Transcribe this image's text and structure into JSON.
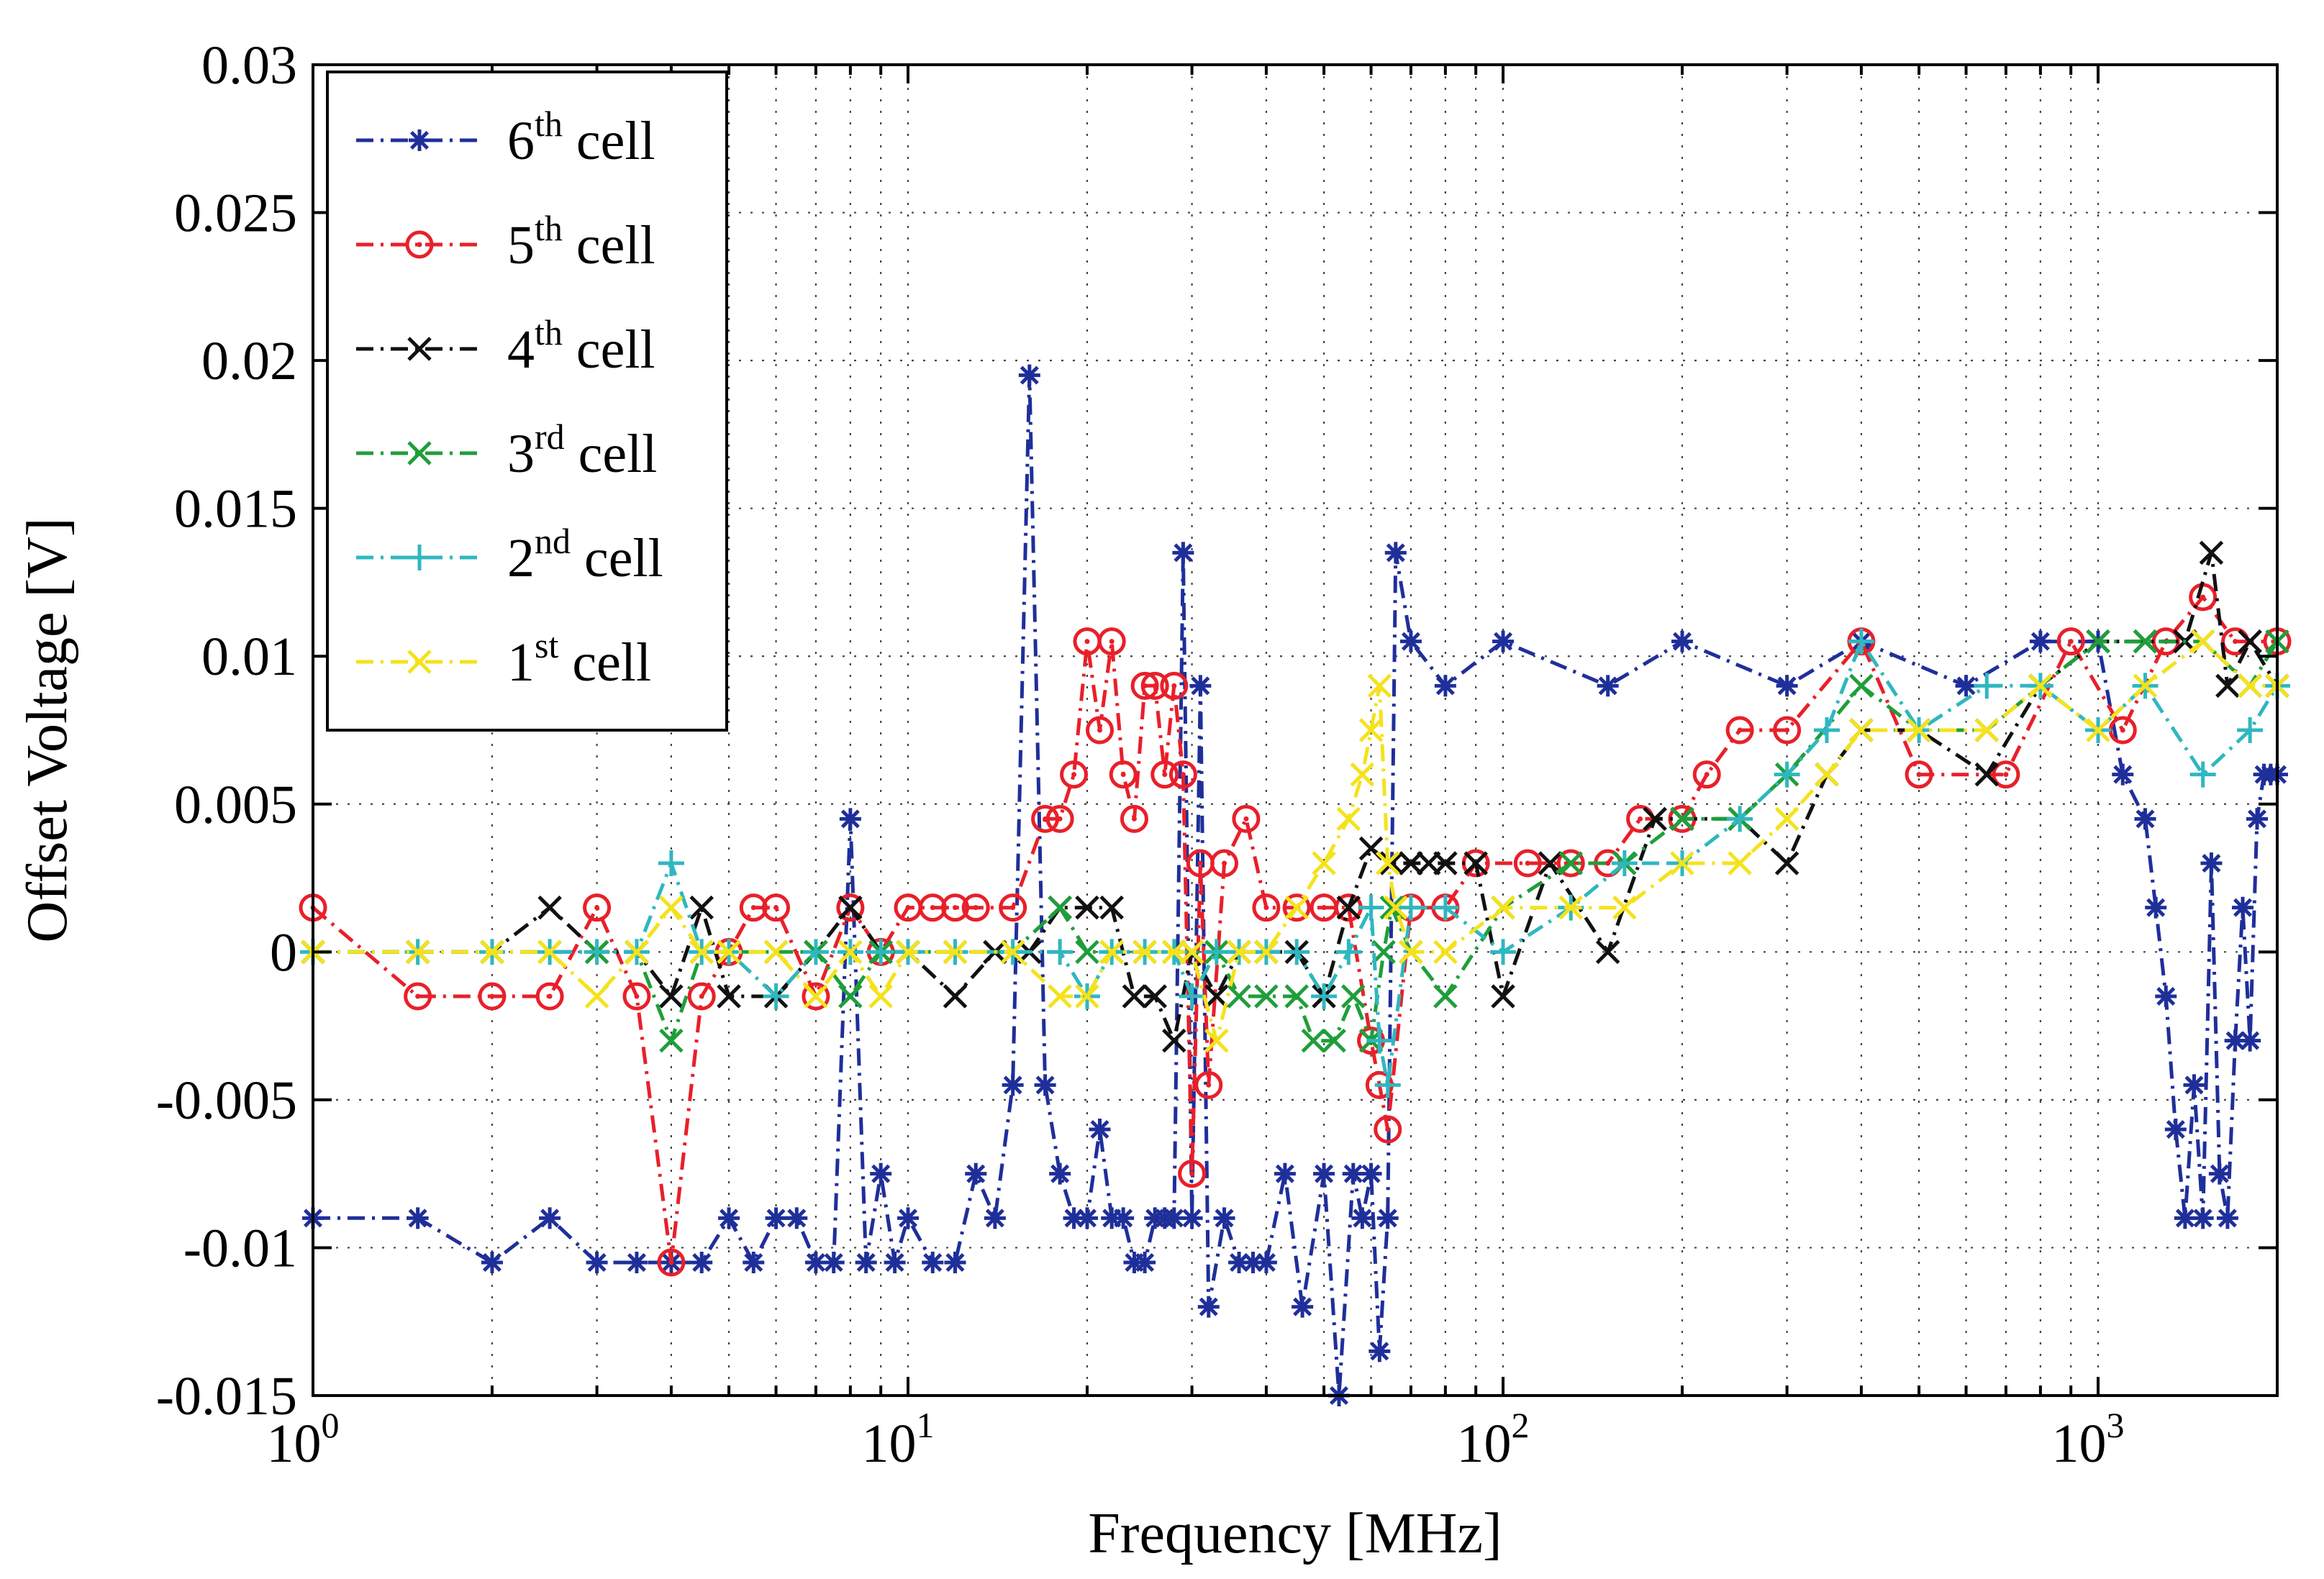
{
  "chart_data": {
    "type": "line",
    "title": "",
    "xlabel": "Frequency [MHz]",
    "ylabel": "Offset Voltage [V]",
    "xscale": "log",
    "xlim": [
      1,
      2000
    ],
    "ylim": [
      -0.015,
      0.03
    ],
    "grid": true,
    "legend_position": "top-left",
    "x_ticks": [
      {
        "value": 1,
        "base": "10",
        "exp": "0"
      },
      {
        "value": 10,
        "base": "10",
        "exp": "1"
      },
      {
        "value": 100,
        "base": "10",
        "exp": "2"
      },
      {
        "value": 1000,
        "base": "10",
        "exp": "3"
      }
    ],
    "y_ticks": [
      {
        "value": 0.03,
        "label": "0.03"
      },
      {
        "value": 0.025,
        "label": "0.025"
      },
      {
        "value": 0.02,
        "label": "0.02"
      },
      {
        "value": 0.015,
        "label": "0.015"
      },
      {
        "value": 0.01,
        "label": "0.01"
      },
      {
        "value": 0.005,
        "label": "0.005"
      },
      {
        "value": 0,
        "label": "0"
      },
      {
        "value": -0.005,
        "label": "-0.005"
      },
      {
        "value": -0.01,
        "label": "-0.01"
      },
      {
        "value": -0.015,
        "label": "-0.015"
      }
    ],
    "series": [
      {
        "name": "6th cell",
        "ordinal": "6",
        "suffix": "th",
        "label_rest": " cell",
        "color": "#1f2f9a",
        "marker": "star",
        "dash": "24,10,4,10",
        "x": [
          1,
          1.5,
          2,
          2.5,
          3,
          3.5,
          4,
          4.5,
          5,
          5.5,
          6,
          6.5,
          7,
          7.5,
          8,
          8.5,
          9,
          9.5,
          10,
          11,
          12,
          13,
          14,
          15,
          16,
          17,
          18,
          19,
          20,
          21,
          22,
          23,
          24,
          25,
          26,
          27,
          28,
          29,
          30,
          31,
          32,
          34,
          36,
          38,
          40,
          43,
          46,
          50,
          53,
          56,
          58,
          60,
          62,
          64,
          66,
          70,
          80,
          100,
          150,
          200,
          300,
          400,
          600,
          800,
          1000,
          1100,
          1200,
          1250,
          1300,
          1350,
          1400,
          1450,
          1500,
          1550,
          1600,
          1650,
          1700,
          1750,
          1800,
          1850,
          1900,
          1950,
          2000
        ],
        "y": [
          -0.009,
          -0.009,
          -0.0105,
          -0.009,
          -0.0105,
          -0.0105,
          -0.0105,
          -0.0105,
          -0.009,
          -0.0105,
          -0.009,
          -0.009,
          -0.0105,
          -0.0105,
          0.0045,
          -0.0105,
          -0.0075,
          -0.0105,
          -0.009,
          -0.0105,
          -0.0105,
          -0.0075,
          -0.009,
          -0.0045,
          0.0195,
          -0.0045,
          -0.0075,
          -0.009,
          -0.009,
          -0.006,
          -0.009,
          -0.009,
          -0.0105,
          -0.0105,
          -0.009,
          -0.009,
          -0.009,
          0.0135,
          -0.009,
          0.009,
          -0.012,
          -0.009,
          -0.0105,
          -0.0105,
          -0.0105,
          -0.0075,
          -0.012,
          -0.0075,
          -0.015,
          -0.0075,
          -0.009,
          -0.0075,
          -0.0135,
          -0.009,
          0.0135,
          0.0105,
          0.009,
          0.0105,
          0.009,
          0.0105,
          0.009,
          0.0105,
          0.009,
          0.0105,
          0.0105,
          0.006,
          0.0045,
          0.0015,
          -0.0015,
          -0.006,
          -0.009,
          -0.0045,
          -0.009,
          0.003,
          -0.0075,
          -0.009,
          -0.003,
          0.0015,
          -0.003,
          0.0045,
          0.006,
          0.006,
          0.006
        ]
      },
      {
        "name": "5th cell",
        "ordinal": "5",
        "suffix": "th",
        "label_rest": " cell",
        "color": "#e8202a",
        "marker": "circle",
        "dash": "24,10,4,10",
        "x": [
          1,
          1.5,
          2,
          2.5,
          3,
          3.5,
          4,
          4.5,
          5,
          5.5,
          6,
          7,
          8,
          9,
          10,
          11,
          12,
          13,
          15,
          17,
          18,
          19,
          20,
          21,
          22,
          23,
          24,
          25,
          26,
          27,
          28,
          29,
          30,
          31,
          32,
          34,
          37,
          40,
          45,
          50,
          55,
          60,
          62,
          64,
          70,
          80,
          90,
          110,
          130,
          150,
          170,
          200,
          220,
          250,
          300,
          400,
          500,
          700,
          900,
          1100,
          1300,
          1500,
          1700,
          2000
        ],
        "y": [
          0.0015,
          -0.0015,
          -0.0015,
          -0.0015,
          0.0015,
          -0.0015,
          -0.0105,
          -0.0015,
          0,
          0.0015,
          0.0015,
          -0.0015,
          0.0015,
          0,
          0.0015,
          0.0015,
          0.0015,
          0.0015,
          0.0015,
          0.0045,
          0.0045,
          0.006,
          0.0105,
          0.0075,
          0.0105,
          0.006,
          0.0045,
          0.009,
          0.009,
          0.006,
          0.009,
          0.006,
          -0.0075,
          0.003,
          -0.0045,
          0.003,
          0.0045,
          0.0015,
          0.0015,
          0.0015,
          0.0015,
          -0.003,
          -0.0045,
          -0.006,
          0.0015,
          0.0015,
          0.003,
          0.003,
          0.003,
          0.003,
          0.0045,
          0.0045,
          0.006,
          0.0075,
          0.0075,
          0.0105,
          0.006,
          0.006,
          0.0105,
          0.0075,
          0.0105,
          0.012,
          0.0105,
          0.0105
        ]
      },
      {
        "name": "4th cell",
        "ordinal": "4",
        "suffix": "th",
        "label_rest": " cell",
        "color": "#111111",
        "marker": "x",
        "dash": "24,10,4,10",
        "x": [
          1,
          1.5,
          2,
          2.5,
          3,
          3.5,
          4,
          4.5,
          5,
          6,
          7,
          8,
          9,
          10,
          12,
          14,
          16,
          18,
          20,
          22,
          24,
          26,
          28,
          30,
          33,
          36,
          40,
          45,
          50,
          55,
          60,
          65,
          70,
          75,
          80,
          90,
          100,
          120,
          150,
          180,
          200,
          250,
          300,
          350,
          400,
          500,
          650,
          800,
          1000,
          1200,
          1400,
          1550,
          1650,
          1800,
          2000
        ],
        "y": [
          0,
          0,
          0,
          0.0015,
          0,
          0,
          -0.0015,
          0.0015,
          -0.0015,
          -0.0015,
          0,
          0.0015,
          0,
          0,
          -0.0015,
          0,
          0,
          0.0015,
          0.0015,
          0.0015,
          -0.0015,
          -0.0015,
          -0.003,
          0,
          -0.0015,
          0,
          0,
          0,
          -0.0015,
          0.0015,
          0.0035,
          0.003,
          0.003,
          0.003,
          0.003,
          0.003,
          -0.0015,
          0.003,
          0,
          0.0045,
          0.0045,
          0.0045,
          0.003,
          0.006,
          0.0075,
          0.0075,
          0.006,
          0.009,
          0.0105,
          0.0105,
          0.0105,
          0.0135,
          0.009,
          0.0105,
          0.009
        ]
      },
      {
        "name": "3rd cell",
        "ordinal": "3",
        "suffix": "rd",
        "label_rest": " cell",
        "color": "#1f9e3a",
        "marker": "x",
        "dash": "24,10,4,10",
        "x": [
          1,
          1.5,
          2,
          2.5,
          3,
          3.5,
          4,
          4.5,
          5,
          6,
          7,
          8,
          9,
          10,
          12,
          15,
          18,
          20,
          22,
          25,
          28,
          30,
          33,
          36,
          40,
          45,
          48,
          52,
          56,
          60,
          63,
          65,
          70,
          80,
          100,
          130,
          160,
          200,
          250,
          300,
          400,
          500,
          650,
          800,
          1000,
          1200,
          1500,
          1800,
          2000
        ],
        "y": [
          0,
          0,
          0,
          0,
          0,
          0,
          -0.003,
          0,
          0,
          0,
          0,
          -0.0015,
          0,
          0,
          0,
          0,
          0.0015,
          0,
          0,
          0,
          0,
          0,
          0,
          -0.0015,
          -0.0015,
          -0.0015,
          -0.003,
          -0.003,
          -0.0015,
          -0.003,
          0,
          0.0015,
          0,
          -0.0015,
          0.0015,
          0.003,
          0.003,
          0.0045,
          0.0045,
          0.006,
          0.009,
          0.0075,
          0.0075,
          0.009,
          0.0105,
          0.0105,
          0.0105,
          0.009,
          0.0105
        ]
      },
      {
        "name": "2nd cell",
        "ordinal": "2",
        "suffix": "nd",
        "label_rest": " cell",
        "color": "#2fb7c0",
        "marker": "plus",
        "dash": "24,10,4,10",
        "x": [
          1,
          1.5,
          2,
          2.5,
          3,
          3.5,
          4,
          4.5,
          5,
          6,
          7,
          8,
          9,
          10,
          12,
          15,
          18,
          20,
          22,
          25,
          28,
          30,
          33,
          36,
          40,
          45,
          50,
          55,
          60,
          62,
          64,
          70,
          80,
          100,
          130,
          160,
          200,
          250,
          300,
          350,
          400,
          500,
          650,
          800,
          1000,
          1200,
          1500,
          1800,
          2000
        ],
        "y": [
          0,
          0,
          0,
          0,
          0,
          0,
          0.003,
          0,
          0,
          -0.0015,
          0,
          0,
          0,
          0,
          0,
          0,
          0,
          -0.0015,
          0,
          0,
          0,
          -0.0015,
          0,
          0,
          0,
          0,
          -0.0015,
          0,
          0.0015,
          -0.003,
          -0.0045,
          0.0015,
          0.0015,
          0,
          0.0015,
          0.003,
          0.003,
          0.0045,
          0.006,
          0.0075,
          0.0105,
          0.0075,
          0.009,
          0.009,
          0.0075,
          0.009,
          0.006,
          0.0075,
          0.009
        ]
      },
      {
        "name": "1st cell",
        "ordinal": "1",
        "suffix": "st",
        "label_rest": " cell",
        "color": "#f5e21c",
        "marker": "x",
        "dash": "24,10,4,10",
        "x": [
          1,
          1.5,
          2,
          2.5,
          3,
          3.5,
          4,
          4.5,
          5,
          6,
          7,
          8,
          9,
          10,
          12,
          15,
          18,
          20,
          22,
          25,
          28,
          30,
          33,
          36,
          40,
          45,
          50,
          55,
          58,
          60,
          62,
          64,
          66,
          70,
          80,
          100,
          130,
          160,
          200,
          250,
          300,
          350,
          400,
          500,
          650,
          800,
          1000,
          1200,
          1500,
          1800,
          2000
        ],
        "y": [
          0,
          0,
          0,
          0,
          -0.0015,
          0,
          0.0015,
          0,
          0,
          0,
          -0.0015,
          0,
          -0.0015,
          0,
          0,
          0,
          -0.0015,
          -0.0015,
          0,
          0,
          0,
          0,
          -0.003,
          0,
          0,
          0.0015,
          0.003,
          0.0045,
          0.006,
          0.0075,
          0.009,
          0.003,
          0.0015,
          0,
          0,
          0.0015,
          0.0015,
          0.0015,
          0.003,
          0.003,
          0.0045,
          0.006,
          0.0075,
          0.0075,
          0.0075,
          0.009,
          0.0075,
          0.009,
          0.0105,
          0.009,
          0.009
        ]
      }
    ]
  }
}
